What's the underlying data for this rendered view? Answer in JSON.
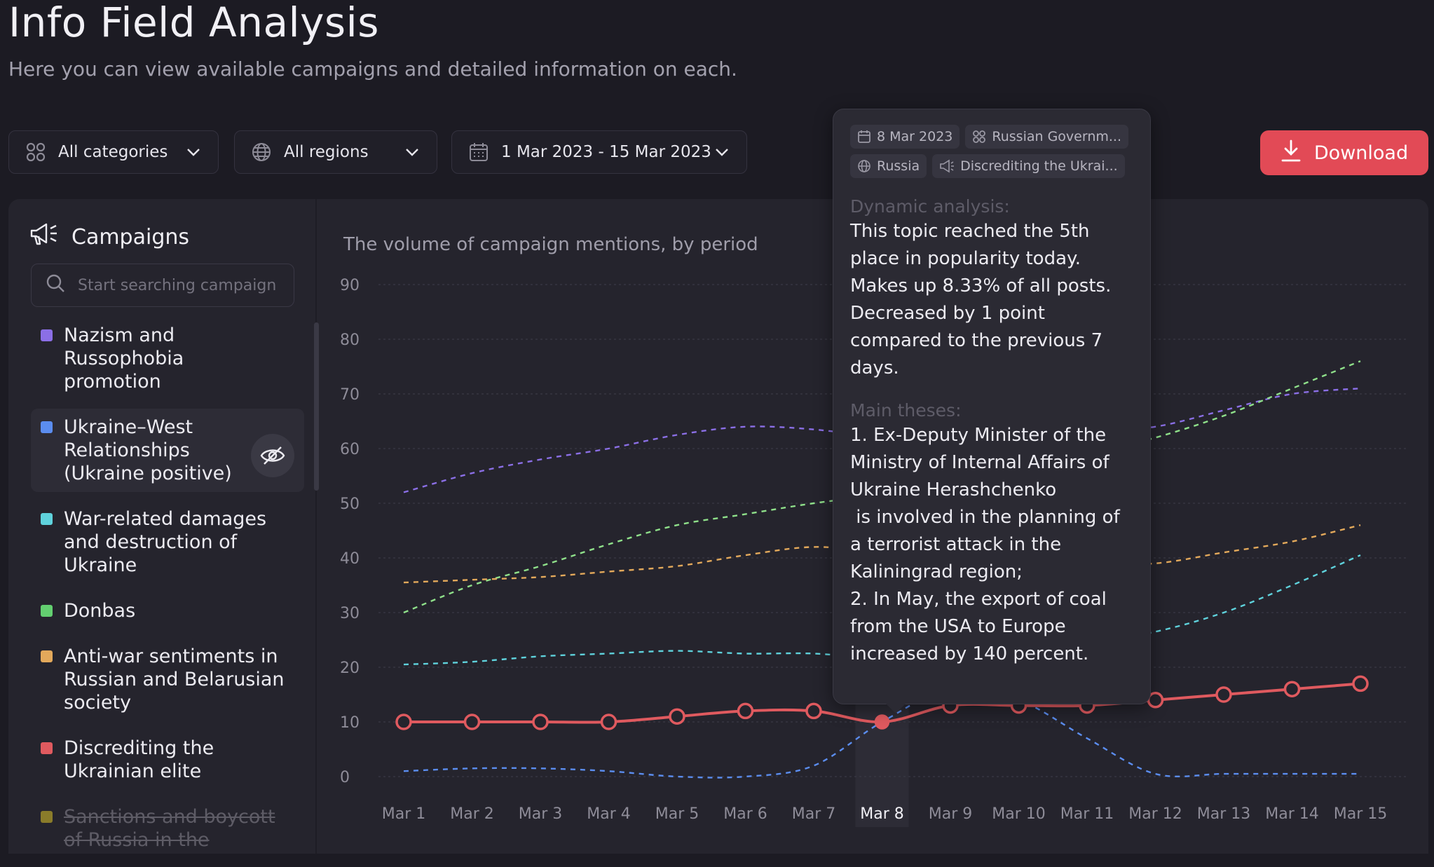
{
  "header": {
    "title": "Info Field Analysis",
    "subtitle": "Here you can view available campaigns and detailed information on each."
  },
  "filters": {
    "categories": "All categories",
    "regions": "All regions",
    "date_range": "1 Mar 2023 - 15 Mar 2023"
  },
  "download_label": "Download",
  "sidebar": {
    "title": "Campaigns",
    "search_placeholder": "Start searching campaign",
    "items": [
      {
        "label": "Nazism and Russophobia promotion",
        "color": "#8b6fe6"
      },
      {
        "label": "Ukraine–West Relationships (Ukraine positive)",
        "color": "#5b8def"
      },
      {
        "label": "War-related damages and destruction of Ukraine",
        "color": "#5fd2dc"
      },
      {
        "label": "Donbas",
        "color": "#63cf70"
      },
      {
        "label": "Anti-war sentiments in Russian and Belarusian society",
        "color": "#e3a95b"
      },
      {
        "label": "Discrediting the Ukrainian elite",
        "color": "#e05a5f"
      },
      {
        "label": "Sanctions and boycott of Russia in the",
        "color": "#8a7c2a"
      }
    ]
  },
  "chart_title": "The volume of campaign mentions, by period",
  "tooltip": {
    "tags": [
      "8 Mar 2023",
      "Russian Governm...",
      "Russia",
      "Discrediting the Ukrai..."
    ],
    "dynamic_label": "Dynamic analysis:",
    "dynamic_text": "This topic reached the 5th place in popularity today. Makes up 8.33% of all posts. Decreased by 1 point compared to the previous 7 days.",
    "theses_label": "Main theses:",
    "theses_text": "1. Ex-Deputy Minister of the Ministry of Internal Affairs of Ukraine Herashchenko\n is involved in the planning of a terrorist attack in the Kaliningrad region;\n2. In May, the export of coal from the USA to Europe increased by 140 percent."
  },
  "chart_data": {
    "type": "line",
    "title": "The volume of campaign mentions, by period",
    "categories": [
      "Mar 1",
      "Mar 2",
      "Mar 3",
      "Mar 4",
      "Mar 5",
      "Mar 6",
      "Mar 7",
      "Mar 8",
      "Mar 9",
      "Mar 10",
      "Mar 11",
      "Mar 12",
      "Mar 13",
      "Mar 14",
      "Mar 15"
    ],
    "highlight": "Mar 8",
    "ylim": [
      0,
      90
    ],
    "yticks": [
      0,
      10,
      20,
      30,
      40,
      50,
      60,
      70,
      80,
      90
    ],
    "series": [
      {
        "name": "Nazism and Russophobia promotion",
        "color": "#8b6fe6",
        "style": "dashed",
        "values": [
          52,
          55.5,
          58,
          60,
          62.5,
          64,
          63.5,
          62,
          61,
          62,
          63,
          64,
          67,
          70,
          71
        ]
      },
      {
        "name": "Donbas",
        "color": "#8fe08a",
        "style": "dashed",
        "values": [
          30,
          35,
          38.5,
          42.5,
          46,
          48,
          50,
          51.5,
          53,
          56,
          59,
          62,
          66,
          71,
          76
        ]
      },
      {
        "name": "Anti-war sentiments in Russian and Belarusian society",
        "color": "#e3a95b",
        "style": "dashed",
        "values": [
          35.5,
          36,
          36.5,
          37.5,
          38.5,
          40.5,
          42,
          41,
          40,
          39.5,
          39,
          39,
          41,
          43,
          46
        ]
      },
      {
        "name": "War-related damages and destruction of Ukraine",
        "color": "#5fd2dc",
        "style": "dashed",
        "values": [
          20.5,
          21,
          22,
          22.5,
          23,
          22.5,
          22.5,
          21.5,
          21,
          22,
          24.5,
          26.5,
          30,
          35,
          40.5
        ]
      },
      {
        "name": "Ukraine–West Relationships (Ukraine positive)",
        "color": "#5b8def",
        "style": "dashed",
        "values": [
          1,
          1.5,
          1.5,
          1,
          0,
          0,
          2,
          10,
          16,
          14,
          7,
          0.5,
          0.5,
          0.5,
          0.5
        ]
      },
      {
        "name": "Discrediting the Ukrainian elite",
        "color": "#e05a5f",
        "style": "solid",
        "values": [
          10,
          10,
          10,
          10,
          11,
          12,
          12,
          10,
          13,
          13,
          13,
          14,
          15,
          16,
          17
        ]
      }
    ]
  }
}
